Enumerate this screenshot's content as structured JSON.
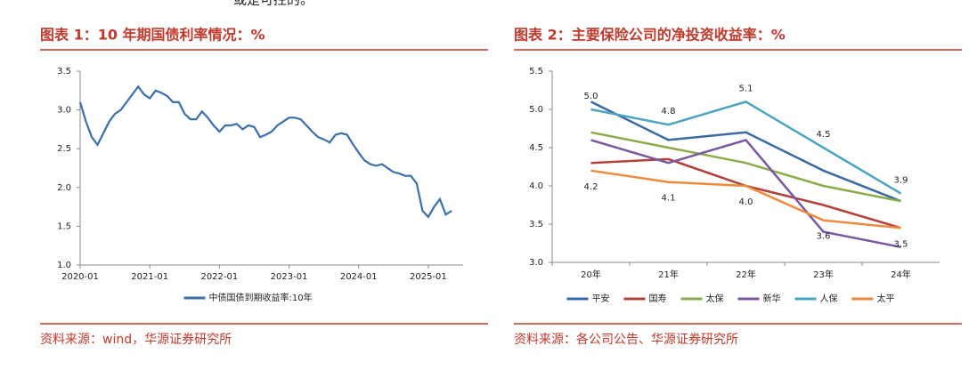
{
  "header": {
    "text": "或是可控的。"
  },
  "chart_data": [
    {
      "type": "line",
      "caption": "图表 1：10 年期国债利率情况：%",
      "source": "资料来源：wind，华源证券研究所",
      "x": [
        "2020-01",
        "2020-02",
        "2020-03",
        "2020-04",
        "2020-05",
        "2020-06",
        "2020-07",
        "2020-08",
        "2020-09",
        "2020-10",
        "2020-11",
        "2020-12",
        "2021-01",
        "2021-02",
        "2021-03",
        "2021-04",
        "2021-05",
        "2021-06",
        "2021-07",
        "2021-08",
        "2021-09",
        "2021-10",
        "2021-11",
        "2021-12",
        "2022-01",
        "2022-02",
        "2022-03",
        "2022-04",
        "2022-05",
        "2022-06",
        "2022-07",
        "2022-08",
        "2022-09",
        "2022-10",
        "2022-11",
        "2022-12",
        "2023-01",
        "2023-02",
        "2023-03",
        "2023-04",
        "2023-05",
        "2023-06",
        "2023-07",
        "2023-08",
        "2023-09",
        "2023-10",
        "2023-11",
        "2023-12",
        "2024-01",
        "2024-02",
        "2024-03",
        "2024-04",
        "2024-05",
        "2024-06",
        "2024-07",
        "2024-08",
        "2024-09",
        "2024-10",
        "2024-11",
        "2024-12",
        "2025-01",
        "2025-02",
        "2025-03",
        "2025-04",
        "2025-05"
      ],
      "series": [
        {
          "name": "中债国债到期收益率:10年",
          "color": "#3a6fa8",
          "values": [
            3.1,
            2.85,
            2.65,
            2.55,
            2.7,
            2.85,
            2.95,
            3.0,
            3.1,
            3.2,
            3.3,
            3.2,
            3.15,
            3.25,
            3.22,
            3.18,
            3.1,
            3.1,
            2.95,
            2.88,
            2.88,
            2.98,
            2.9,
            2.8,
            2.72,
            2.8,
            2.8,
            2.82,
            2.75,
            2.8,
            2.78,
            2.65,
            2.68,
            2.72,
            2.8,
            2.85,
            2.9,
            2.9,
            2.88,
            2.8,
            2.72,
            2.65,
            2.62,
            2.58,
            2.68,
            2.7,
            2.68,
            2.56,
            2.45,
            2.35,
            2.3,
            2.28,
            2.3,
            2.25,
            2.2,
            2.18,
            2.15,
            2.15,
            2.05,
            1.7,
            1.62,
            1.75,
            1.85,
            1.65,
            1.7
          ]
        }
      ],
      "xticks": [
        "2020-01",
        "2021-01",
        "2022-01",
        "2023-01",
        "2024-01",
        "2025-01"
      ],
      "ylim": [
        1,
        3.5
      ],
      "yticks": [
        {
          "value": 1,
          "label": "1.0"
        },
        1.5,
        {
          "value": 2,
          "label": "2.0"
        },
        2.5,
        {
          "value": 3,
          "label": "3.0"
        },
        3.5
      ]
    },
    {
      "type": "line",
      "caption": "图表 2：主要保险公司的净投资收益率：%",
      "source": "资料来源：各公司公告、华源证券研究所",
      "categories": [
        "20年",
        "21年",
        "22年",
        "23年",
        "24年"
      ],
      "series": [
        {
          "name": "平安",
          "color": "#3a6aa3",
          "values": [
            5.1,
            4.6,
            4.7,
            4.2,
            3.8
          ]
        },
        {
          "name": "国寿",
          "color": "#b5403a",
          "values": [
            4.3,
            4.35,
            4.0,
            3.75,
            3.45
          ]
        },
        {
          "name": "太保",
          "color": "#8aac48",
          "values": [
            4.7,
            4.5,
            4.3,
            4.0,
            3.8
          ]
        },
        {
          "name": "新华",
          "color": "#7a58a0",
          "values": [
            4.6,
            4.3,
            4.6,
            3.4,
            3.2
          ]
        },
        {
          "name": "人保",
          "color": "#4ba5c0",
          "values": [
            5.0,
            4.8,
            5.1,
            4.5,
            3.9
          ],
          "value_labels": [
            "5.0",
            "4.8",
            "5.1",
            "4.5",
            "3.9"
          ]
        },
        {
          "name": "太平",
          "color": "#f08a3a",
          "values": [
            4.2,
            4.05,
            4.0,
            3.55,
            3.45
          ],
          "value_labels": [
            "4.2",
            "4.1",
            "4.0",
            "3.6",
            "3.5"
          ]
        }
      ],
      "ylim": [
        3,
        5.5
      ],
      "yticks": [
        {
          "value": 3,
          "label": "3.0"
        },
        3.5,
        {
          "value": 4,
          "label": "4.0"
        },
        4.5,
        {
          "value": 5,
          "label": "5.0"
        },
        5.5
      ]
    }
  ]
}
